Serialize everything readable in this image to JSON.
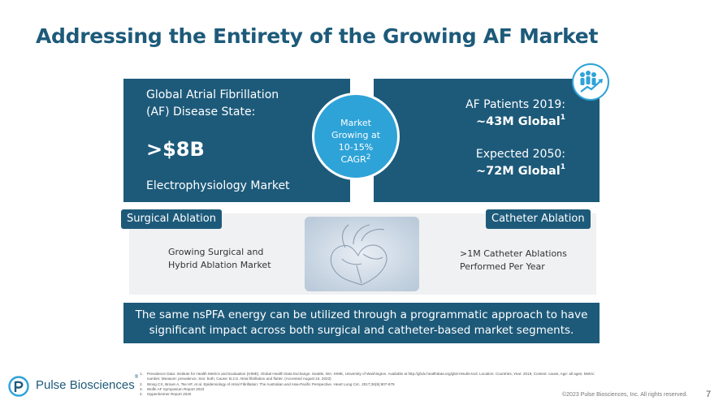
{
  "title": "Addressing the Entirety of the Growing AF Market",
  "left_box": {
    "line1": "Global Atrial Fibrillation",
    "line2": "(AF) Disease State:",
    "big_value": ">$8B",
    "line3": "Electrophysiology Market"
  },
  "circle": {
    "line1": "Market",
    "line2": "Growing at",
    "line3": "10-15%",
    "line4": "CAGR",
    "sup": "2"
  },
  "right_box": {
    "line1": "AF Patients 2019:",
    "line2": "~43M Global",
    "line2_sup": "1",
    "line3": "Expected 2050:",
    "line4": "~72M Global",
    "line4_sup": "1",
    "icon": "people-growth-icon"
  },
  "surgical": {
    "pill": "Surgical Ablation",
    "line1": "Growing Surgical and",
    "line2": "Hybrid Ablation Market"
  },
  "catheter": {
    "pill": "Catheter Ablation",
    "line1": ">1M Catheter Ablations",
    "line2": "Performed Per Year"
  },
  "center_image": "heart-anatomy-illustration",
  "banner": {
    "line1": "The same nsPFA energy can be utilized through a programmatic approach to have",
    "line2": "significant impact across both surgical and catheter-based market segments."
  },
  "references": [
    "1.    Prevalence Data: Institute for Health Metrics and Evaluation (IHME). Global Health Data Exchange. Seattle, WA: IHME, University of Washington. Available at http://ghdx.healthdata.org/gbd-results-tool. Location: Countries, Year: 2019, Context: cause, Age: all ages, Metric:",
    "       number, Measure: prevalence, Sex: both, Cause: B.2.8. Atrial fibrillation and flutter. (Accessed August 24, 2023)",
    "2.    Wong CX, Brown A, Tse HF, et al. Epidemiology of Atrial Fibrillation: The Australian and Asia-Pacific Perspective. Heart Lung Circ. 2017;26(9):807-879",
    "3.    Wolfe AF Symposium Report 2023",
    "4.    Oppenheimer Report 2020"
  ],
  "logo_text": "Pulse Biosciences",
  "logo_mark": "®",
  "copyright": "©2023 Pulse Biosciences, Inc. All rights reserved.",
  "page_number": "7",
  "colors": {
    "primary": "#1d5a7a",
    "accent": "#2ea3d8",
    "panel": "#f0f1f2"
  }
}
